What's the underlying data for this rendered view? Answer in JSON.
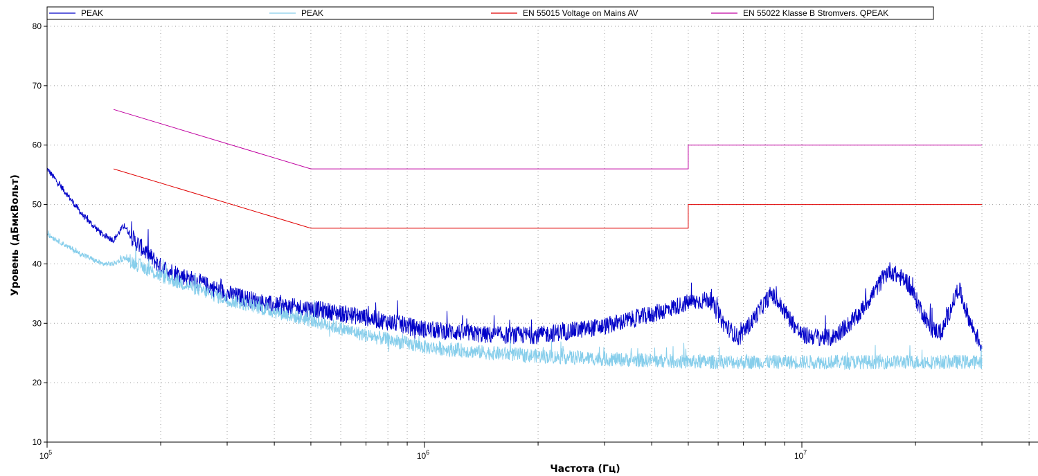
{
  "chart_data": {
    "type": "line",
    "title": "",
    "xlabel": "Частота (Гц)",
    "ylabel": "Уровень (дБмкВольт)",
    "x_scale": "log",
    "xlim": [
      100000,
      50000000
    ],
    "ylim": [
      10,
      80
    ],
    "grid": true,
    "legend_position": "top",
    "x_ticks": [
      {
        "value": 100000,
        "base": "10",
        "exp": "5"
      },
      {
        "value": 1000000,
        "base": "10",
        "exp": "6"
      },
      {
        "value": 10000000,
        "base": "10",
        "exp": "7"
      }
    ],
    "y_ticks": [
      10,
      20,
      30,
      40,
      50,
      60,
      70,
      80
    ],
    "series": [
      {
        "name": "PEAK",
        "color": "#0000c8",
        "kind": "noisy",
        "noise": 1.5,
        "x": [
          100000,
          112000,
          125000,
          140000,
          150000,
          160000,
          170000,
          200000,
          250000,
          300000,
          400000,
          500000,
          700000,
          1000000,
          1500000,
          2000000,
          3000000,
          4000000,
          5000000,
          5700000,
          6200000,
          6800000,
          7300000,
          8300000,
          9000000,
          10000000,
          12000000,
          14000000,
          17000000,
          19000000,
          22000000,
          23500000,
          26000000,
          28000000,
          30000000
        ],
        "y": [
          56,
          52,
          48,
          45,
          44,
          46.5,
          44,
          39.5,
          37,
          35,
          33,
          32.5,
          31,
          29,
          28,
          28,
          29.5,
          31.5,
          33.5,
          34,
          30,
          27.5,
          30,
          35,
          32,
          28,
          27.5,
          31,
          39,
          37,
          29,
          28.5,
          36,
          30,
          26
        ]
      },
      {
        "name": "PEAK",
        "color": "#87ceeb",
        "kind": "noisy",
        "noise": 1.2,
        "x": [
          100000,
          120000,
          140000,
          150000,
          160000,
          200000,
          300000,
          400000,
          500000,
          700000,
          1000000,
          1500000,
          2000000,
          3000000,
          5000000,
          10000000,
          20000000,
          30000000
        ],
        "y": [
          45,
          42,
          40,
          40,
          41,
          38,
          34,
          32,
          30.5,
          28,
          26,
          25,
          24.5,
          24,
          23.5,
          23.5,
          23.5,
          23.5
        ]
      },
      {
        "name": "EN 55015 Voltage on Mains AV",
        "color": "#e00000",
        "kind": "limit",
        "x": [
          150000,
          500000,
          5000000,
          5000000,
          30000000
        ],
        "y": [
          56,
          46,
          46,
          50,
          50
        ]
      },
      {
        "name": "EN 55022 Klasse B Stromvers. QPEAK",
        "color": "#c000a0",
        "kind": "limit",
        "x": [
          150000,
          500000,
          5000000,
          5000000,
          30000000
        ],
        "y": [
          66,
          56,
          56,
          60,
          60
        ]
      }
    ]
  }
}
